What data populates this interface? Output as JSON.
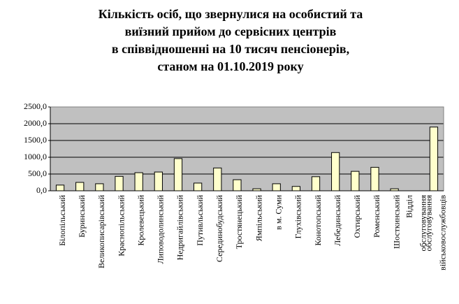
{
  "chart_data": {
    "type": "bar",
    "title": [
      "Кількість осіб, що звернулися на особистий та",
      "виїзний прийом до сервісних центрів",
      "в співвідношенні на 10 тисяч пенсіонерів,",
      "станом на 01.10.2019 року"
    ],
    "categories": [
      [
        "Білопільський"
      ],
      [
        "Буринський"
      ],
      [
        "Великописарівський"
      ],
      [
        "Краснопільський"
      ],
      [
        "Кролевецький"
      ],
      [
        "Липоводолинський"
      ],
      [
        "Недригайлівський"
      ],
      [
        "Путивльський"
      ],
      [
        "Серединобудський"
      ],
      [
        "Тростянецький"
      ],
      [
        "Ямпільський"
      ],
      [
        "в м. Суми"
      ],
      [
        "Глухівський"
      ],
      [
        "Конотопський"
      ],
      [
        "Лебединський"
      ],
      [
        "Охтирський"
      ],
      [
        "Роменський"
      ],
      [
        "Шосткинський"
      ],
      [
        "Відділ",
        "обслуговування"
      ],
      [
        "обслуговування",
        "військовослужбовців"
      ]
    ],
    "values": [
      170,
      250,
      210,
      430,
      540,
      560,
      960,
      230,
      680,
      330,
      60,
      210,
      130,
      420,
      1140,
      580,
      700,
      60,
      null,
      1900
    ],
    "color": "#ffffcc",
    "ylim": [
      0,
      2500
    ],
    "yticks": [
      {
        "value": 0,
        "label": "0,0"
      },
      {
        "value": 500,
        "label": "500,0"
      },
      {
        "value": 1000,
        "label": "1000,0"
      },
      {
        "value": 1500,
        "label": "1500,0"
      },
      {
        "value": 2000,
        "label": "2000,0"
      },
      {
        "value": 2500,
        "label": "2500,0"
      }
    ],
    "grid": true
  }
}
